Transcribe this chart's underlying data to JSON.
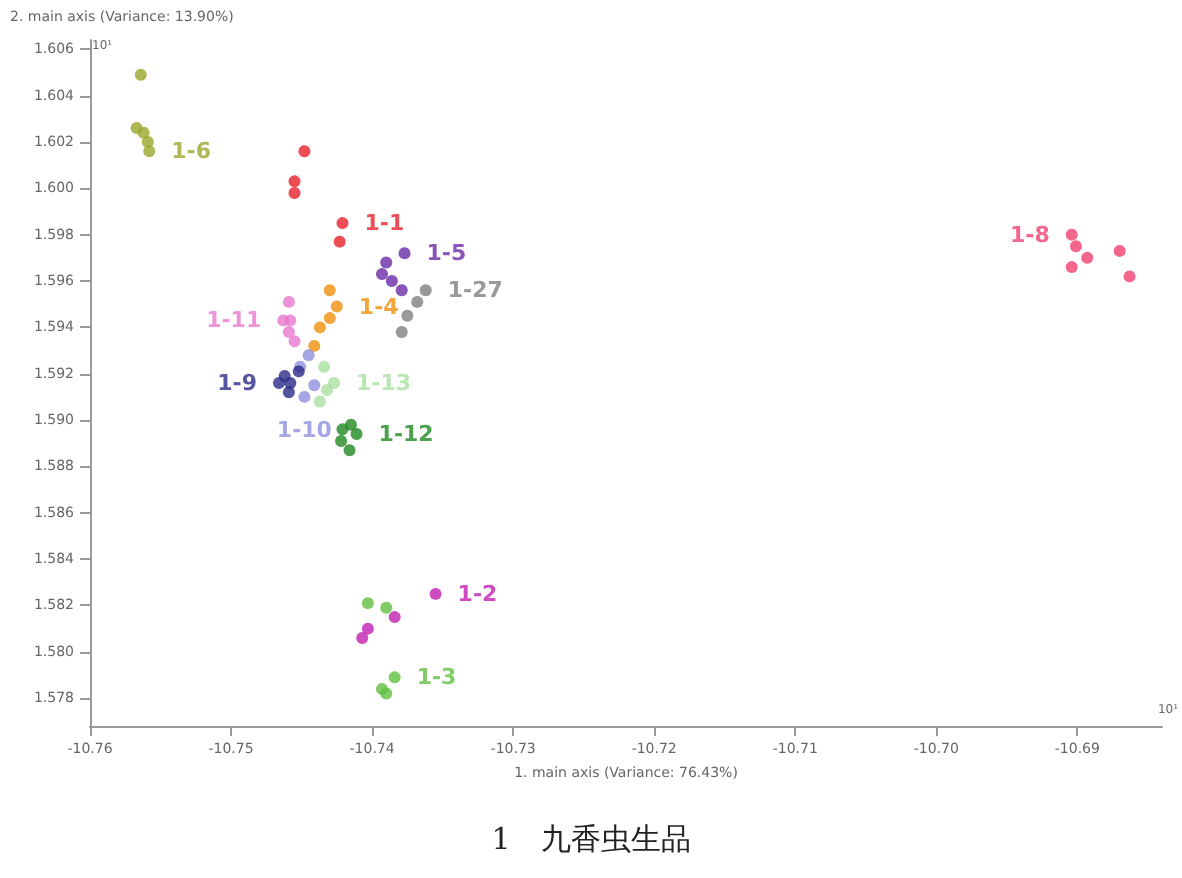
{
  "chart_data": {
    "type": "scatter",
    "xlabel": "1. main axis (Variance: 76.43%)",
    "ylabel": "2. main axis (Variance: 13.90%)",
    "annotations": [
      "10¹",
      "10¹",
      "1　九香虫生品"
    ],
    "xlim": [
      -10.76,
      -10.684
    ],
    "ylim": [
      1.5768,
      1.6064
    ],
    "xticks": [
      -10.76,
      -10.75,
      -10.74,
      -10.73,
      -10.72,
      -10.71,
      {
        "value": -10.7,
        "label": "-10.70"
      },
      -10.69
    ],
    "yticks": [
      1.578,
      {
        "value": 1.58,
        "label": "1.580"
      },
      1.582,
      1.584,
      1.586,
      1.588,
      {
        "value": 1.59,
        "label": "1.590"
      },
      1.592,
      1.594,
      1.596,
      1.598,
      {
        "value": 1.6,
        "label": "1.600"
      },
      1.602,
      1.604,
      1.606
    ],
    "grid": false,
    "legend": false,
    "marker": "circle",
    "series": [
      {
        "name": "1-6",
        "color": "#9aa62a",
        "x": [
          -10.7564,
          -10.7567,
          -10.7562,
          -10.7559,
          -10.7558
        ],
        "values": [
          1.6049,
          1.6026,
          1.6024,
          1.602,
          1.6016
        ]
      },
      {
        "name": "1-1",
        "color": "#e8202a",
        "x": [
          -10.7448,
          -10.7455,
          -10.7455,
          -10.7421,
          -10.7423
        ],
        "values": [
          1.6016,
          1.6003,
          1.5998,
          1.5985,
          1.5977
        ]
      },
      {
        "name": "1-5",
        "color": "#6a2aa8",
        "x": [
          -10.739,
          -10.7393,
          -10.7386,
          -10.7379,
          -10.7377
        ],
        "values": [
          1.5968,
          1.5963,
          1.596,
          1.5956,
          1.5972
        ]
      },
      {
        "name": "1-27",
        "color": "#808080",
        "x": [
          -10.7362,
          -10.7368,
          -10.7375,
          -10.7379
        ],
        "values": [
          1.5956,
          1.5951,
          1.5945,
          1.5938
        ]
      },
      {
        "name": "1-4",
        "color": "#f0900a",
        "x": [
          -10.743,
          -10.7425,
          -10.743,
          -10.7437,
          -10.7441
        ],
        "values": [
          1.5956,
          1.5949,
          1.5944,
          1.594,
          1.5932
        ]
      },
      {
        "name": "1-11",
        "color": "#e878d0",
        "x": [
          -10.7459,
          -10.7463,
          -10.7458,
          -10.7459,
          -10.7455
        ],
        "values": [
          1.5951,
          1.5943,
          1.5943,
          1.5938,
          1.5934
        ]
      },
      {
        "name": "1-9",
        "color": "#2a2a8a",
        "x": [
          -10.7462,
          -10.7458,
          -10.7466,
          -10.7452,
          -10.7459
        ],
        "values": [
          1.5919,
          1.5916,
          1.5916,
          1.5921,
          1.5912
        ]
      },
      {
        "name": "1-10",
        "color": "#9090e0",
        "x": [
          -10.7451,
          -10.7445,
          -10.7441,
          -10.7448
        ],
        "values": [
          1.5923,
          1.5928,
          1.5915,
          1.591
        ]
      },
      {
        "name": "1-13",
        "color": "#a8e0a0",
        "x": [
          -10.7434,
          -10.7432,
          -10.7437,
          -10.7427
        ],
        "values": [
          1.5923,
          1.5913,
          1.5908,
          1.5916
        ]
      },
      {
        "name": "1-12",
        "color": "#208a20",
        "x": [
          -10.7421,
          -10.7415,
          -10.7422,
          -10.7416,
          -10.7411
        ],
        "values": [
          1.5896,
          1.5898,
          1.5891,
          1.5887,
          1.5894
        ]
      },
      {
        "name": "1-2",
        "color": "#c020b0",
        "x": [
          -10.7355,
          -10.7384,
          -10.7403,
          -10.7407
        ],
        "values": [
          1.5825,
          1.5815,
          1.581,
          1.5806
        ]
      },
      {
        "name": "1-3",
        "color": "#60c040",
        "x": [
          -10.7403,
          -10.739,
          -10.7384,
          -10.739,
          -10.7393
        ],
        "values": [
          1.5821,
          1.5819,
          1.5789,
          1.5782,
          1.5784
        ]
      },
      {
        "name": "1-8",
        "color": "#f04070",
        "x": [
          -10.6904,
          -10.6901,
          -10.6893,
          -10.687,
          -10.6863,
          -10.6904
        ],
        "values": [
          1.598,
          1.5975,
          1.597,
          1.5973,
          1.5962,
          1.5966
        ]
      }
    ]
  }
}
